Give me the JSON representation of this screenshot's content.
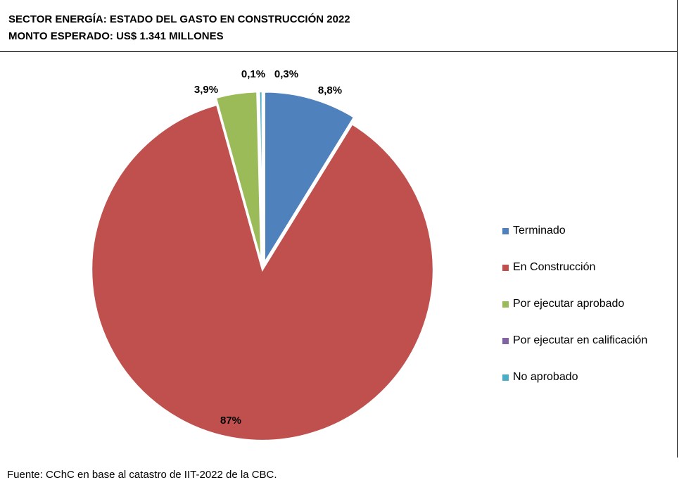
{
  "title": {
    "line1": "SECTOR ENERGÍA: ESTADO DEL GASTO EN CONSTRUCCIÓN 2022",
    "line2": "MONTO ESPERADO: US$ 1.341 MILLONES"
  },
  "chart_data": {
    "type": "pie",
    "title": "SECTOR ENERGÍA: ESTADO DEL GASTO EN CONSTRUCCIÓN 2022",
    "subtitle": "MONTO ESPERADO: US$ 1.341 MILLONES",
    "legend_position": "right",
    "slices": [
      {
        "name": "Terminado",
        "value": 8.8,
        "label": "8,8%",
        "color": "#4F81BD",
        "exploded": true
      },
      {
        "name": "En Construcción",
        "value": 87,
        "label": "87%",
        "color": "#C0504D",
        "exploded": false
      },
      {
        "name": "Por ejecutar aprobado",
        "value": 3.9,
        "label": "3,9%",
        "color": "#9BBB59",
        "exploded": true
      },
      {
        "name": "Por ejecutar en calificación",
        "value": 0.1,
        "label": "0,1%",
        "color": "#8064A2",
        "exploded": true
      },
      {
        "name": "No aprobado",
        "value": 0.3,
        "label": "0,3%",
        "color": "#4BACC6",
        "exploded": true
      }
    ]
  },
  "source": "Fuente: CChC en base al catastro de IIT-2022 de la CBC."
}
